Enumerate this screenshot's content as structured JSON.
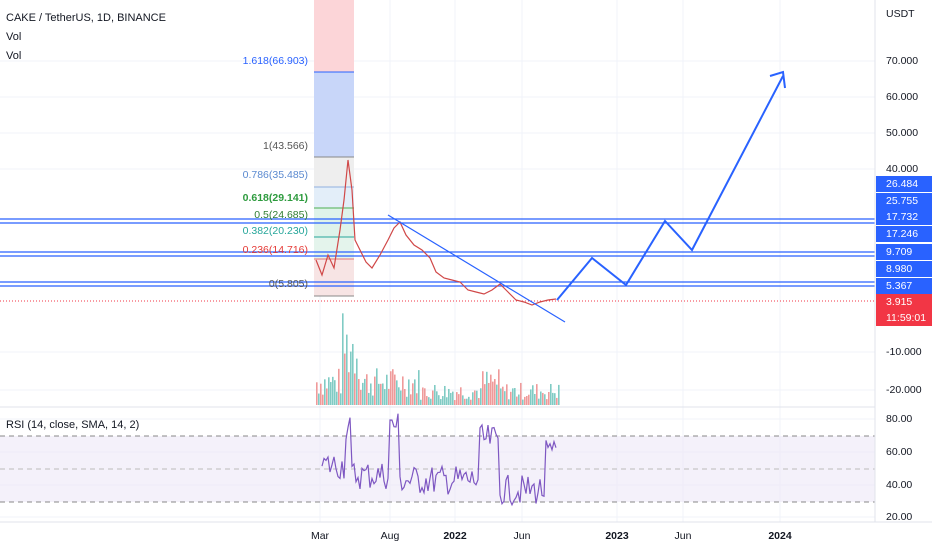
{
  "header": {
    "symbol": "CAKE / TetherUS, 1D, BINANCE",
    "indicators": [
      "Vol",
      "Vol"
    ]
  },
  "fib_levels": [
    "1.618(66.903)",
    "1(43.566)",
    "0.786(35.485)",
    "0.618(29.141)",
    "0.5(24.685)",
    "0.382(20.230)",
    "0.236(14.716)",
    "0(5.805)"
  ],
  "price_axis": {
    "unit": "USDT",
    "labels": [
      "70.000",
      "60.000",
      "50.000",
      "40.000",
      "-10.000",
      "-20.000"
    ]
  },
  "price_badges": [
    "26.484",
    "25.755",
    "17.732",
    "17.246",
    "9.709",
    "8.980",
    "5.367",
    "3.915",
    "11:59:01"
  ],
  "rsi": {
    "label": "RSI (14, close, SMA, 14, 2)",
    "axis": [
      "80.00",
      "60.00",
      "40.00",
      "20.00"
    ]
  },
  "time_axis": [
    "Mar",
    "Aug",
    "2022",
    "Jun",
    "2023",
    "Jun",
    "2024"
  ]
}
